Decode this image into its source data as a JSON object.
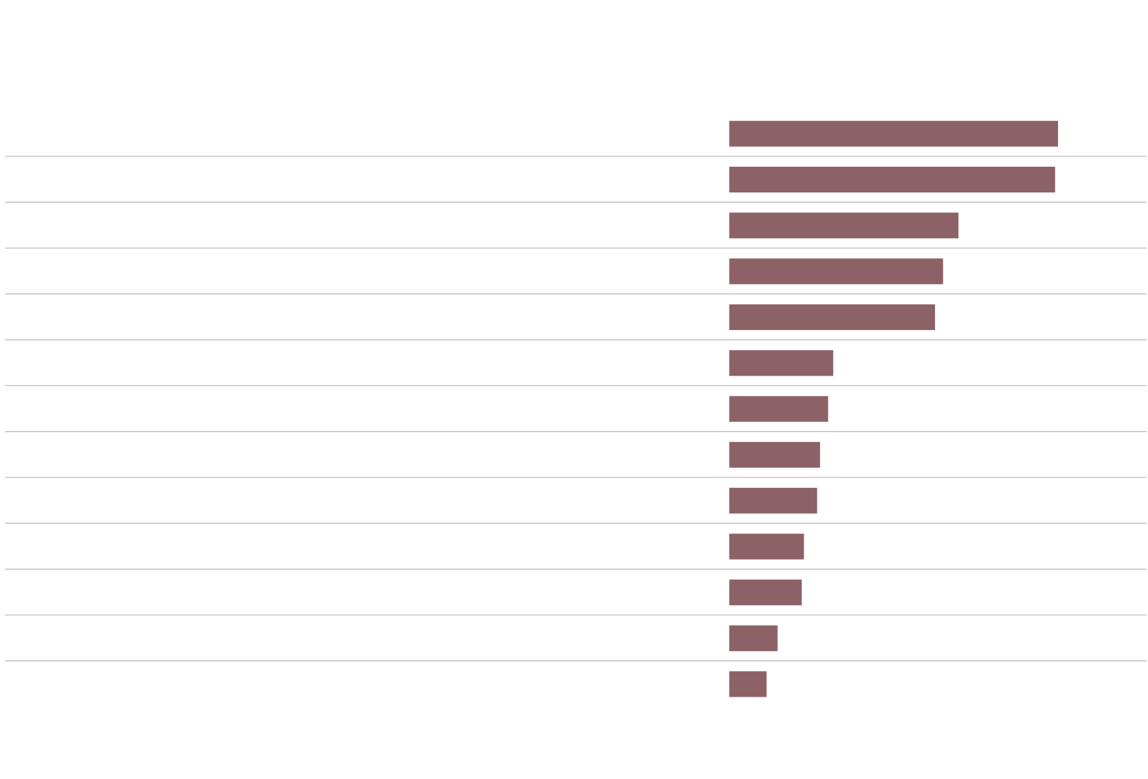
{
  "chart_data": {
    "type": "bar",
    "orientation": "horizontal",
    "values": [
      449,
      445,
      313,
      292,
      281,
      142,
      135,
      124,
      120,
      102,
      99,
      66,
      51
    ],
    "color": "#8c6266",
    "xlim": [
      0,
      500
    ]
  }
}
